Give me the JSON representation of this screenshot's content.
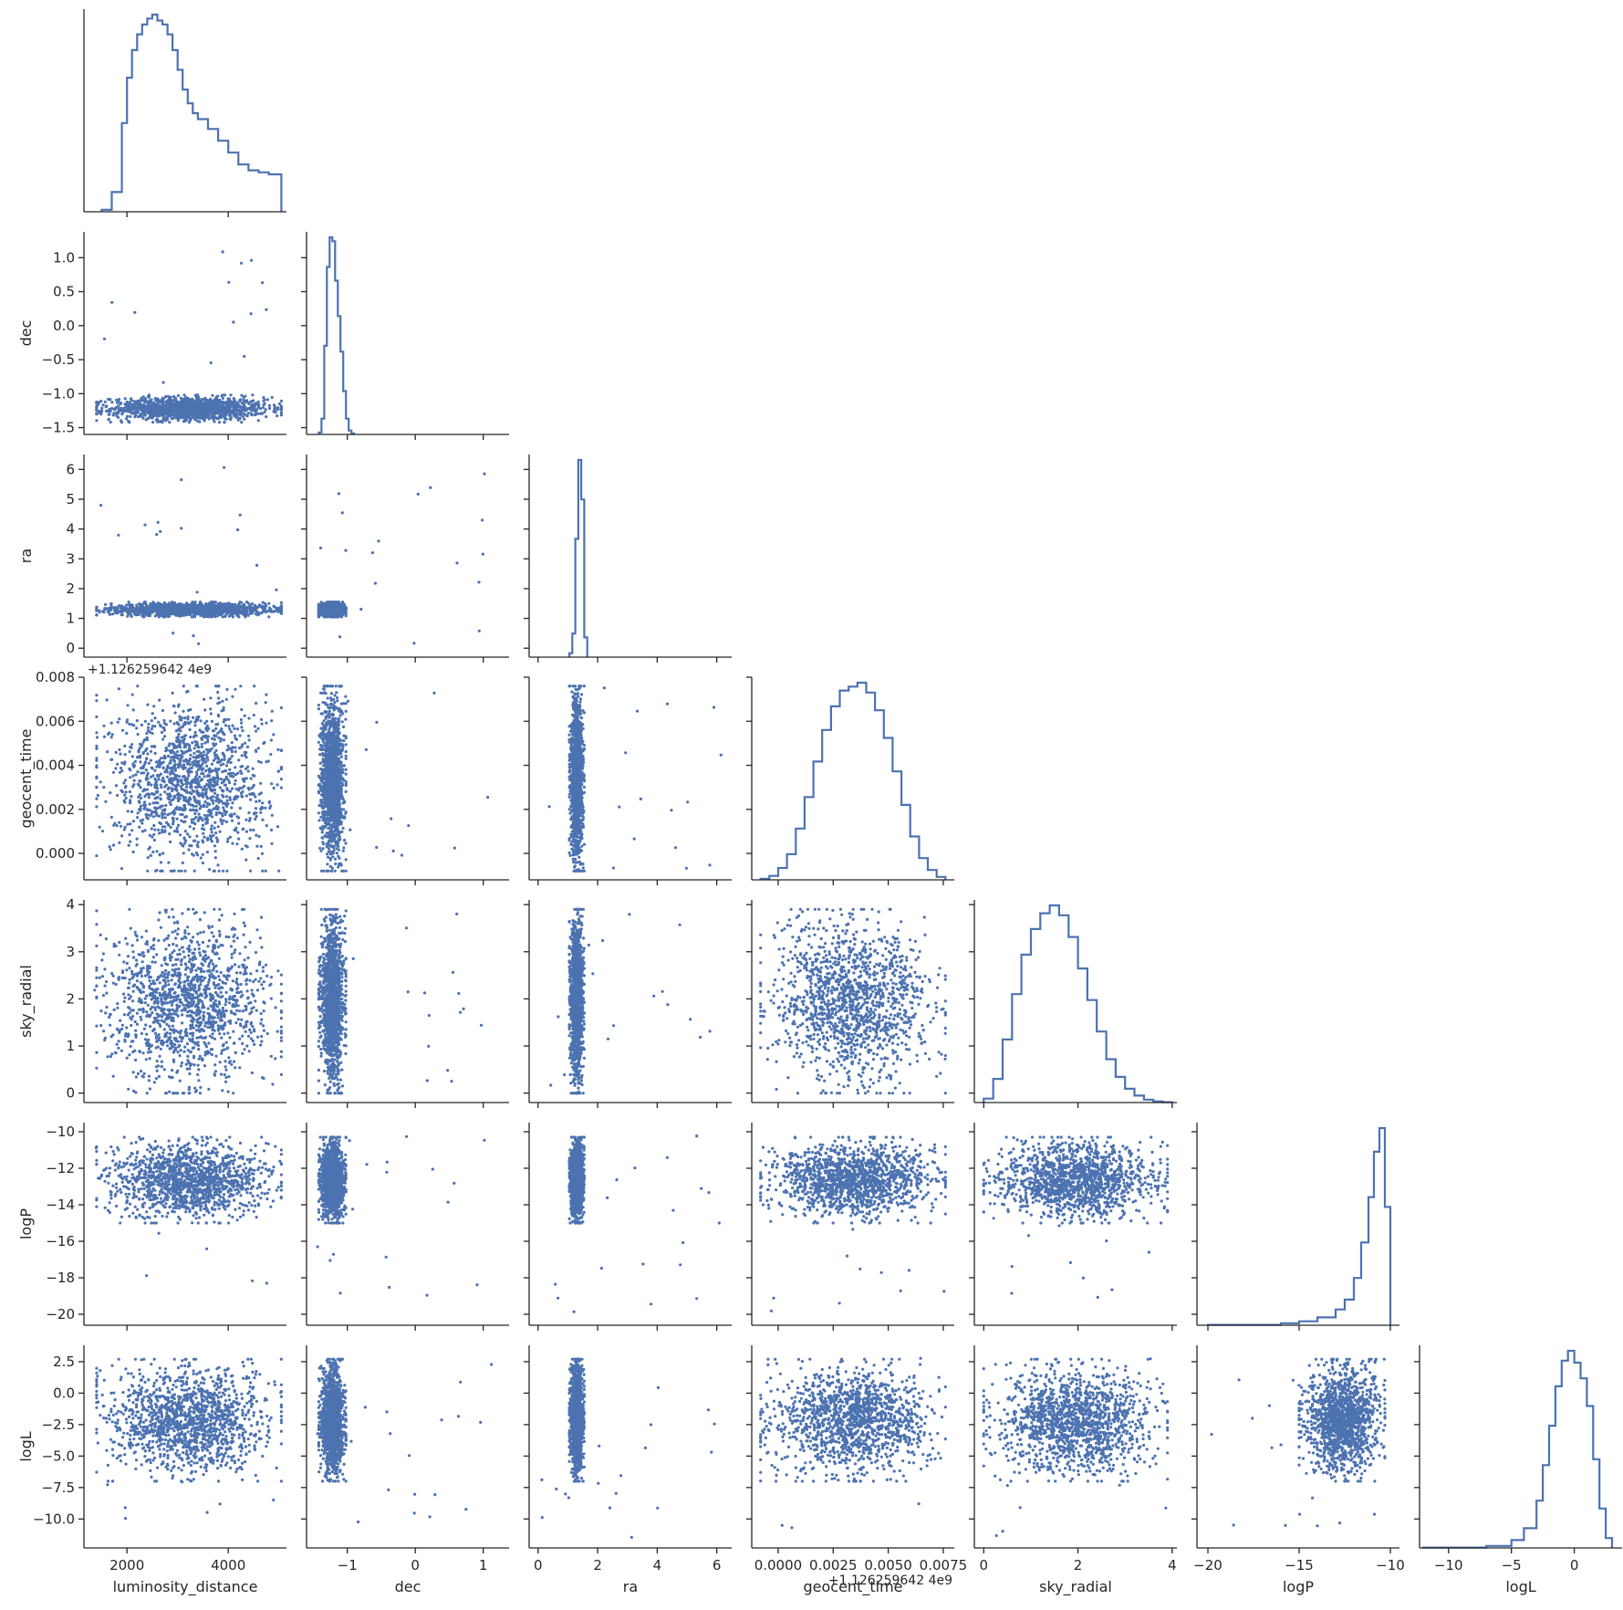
{
  "colors": {
    "marks": "#4c72b0",
    "axis": "#262626",
    "background": "#ffffff"
  },
  "chart_data": {
    "type": "pairplot-corner",
    "variables": [
      "luminosity_distance",
      "dec",
      "ra",
      "geocent_time",
      "sky_radial",
      "logP",
      "logL"
    ],
    "diagonal": "step-histogram",
    "off_diagonal": "scatter",
    "offset_labels": {
      "geocent_time": "+1.126259642 4e9"
    },
    "axes": {
      "luminosity_distance": {
        "lim": [
          1150,
          5150
        ],
        "ticks": [
          2000,
          4000
        ],
        "tick_labels": [
          "2000",
          "4000"
        ]
      },
      "dec": {
        "lim": [
          -1.6,
          1.38
        ],
        "ticks": [
          -1.5,
          -1.0,
          -0.5,
          0.0,
          0.5,
          1.0
        ],
        "tick_labels": [
          "−1.5",
          "−1.0",
          "−0.5",
          "0.0",
          "0.5",
          "1.0"
        ],
        "xticks": [
          -1,
          0,
          1
        ],
        "xtick_labels": [
          "−1",
          "0",
          "1"
        ]
      },
      "ra": {
        "lim": [
          -0.3,
          6.5
        ],
        "ticks": [
          0,
          1,
          2,
          3,
          4,
          5,
          6
        ],
        "tick_labels": [
          "0",
          "1",
          "2",
          "3",
          "4",
          "5",
          "6"
        ],
        "xticks": [
          0,
          2,
          4,
          6
        ],
        "xtick_labels": [
          "0",
          "2",
          "4",
          "6"
        ]
      },
      "geocent_time": {
        "lim": [
          -0.0012,
          0.008
        ],
        "ticks": [
          0.0,
          0.002,
          0.004,
          0.006,
          0.008
        ],
        "tick_labels": [
          "0.000",
          "0.002",
          "0.004",
          "0.006",
          "0.008"
        ],
        "xticks": [
          0.0,
          0.0025,
          0.005,
          0.0075
        ],
        "xtick_labels": [
          "0.0000",
          "0.0025",
          "0.0050",
          "0.0075"
        ]
      },
      "sky_radial": {
        "lim": [
          -0.2,
          4.1
        ],
        "ticks": [
          0,
          1,
          2,
          3,
          4
        ],
        "tick_labels": [
          "0",
          "1",
          "2",
          "3",
          "4"
        ],
        "xticks": [
          0,
          2,
          4
        ],
        "xtick_labels": [
          "0",
          "2",
          "4"
        ]
      },
      "logP": {
        "lim": [
          -20.6,
          -9.5
        ],
        "ticks": [
          -20,
          -18,
          -16,
          -14,
          -12,
          -10
        ],
        "tick_labels": [
          "−20",
          "−18",
          "−16",
          "−14",
          "−12",
          "−10"
        ],
        "xticks": [
          -20,
          -15,
          -10
        ],
        "xtick_labels": [
          "−20",
          "−15",
          "−10"
        ]
      },
      "logL": {
        "lim": [
          -12.3,
          3.8
        ],
        "ticks": [
          -10.0,
          -7.5,
          -5.0,
          -2.5,
          0.0,
          2.5
        ],
        "tick_labels": [
          "−10.0",
          "−7.5",
          "−5.0",
          "−2.5",
          "0.0",
          "2.5"
        ],
        "xticks": [
          -10,
          -5,
          0
        ],
        "xtick_labels": [
          "−10",
          "−5",
          "0"
        ]
      }
    },
    "marginals": {
      "luminosity_distance": {
        "bins": [
          1500,
          1700,
          1900,
          2000,
          2100,
          2200,
          2300,
          2400,
          2500,
          2600,
          2700,
          2800,
          2900,
          3000,
          3100,
          3200,
          3300,
          3400,
          3600,
          3800,
          4000,
          4200,
          4400,
          4600,
          4800,
          4950,
          5050
        ],
        "density": [
          0.01,
          0.1,
          0.45,
          0.68,
          0.82,
          0.9,
          0.95,
          0.98,
          1.0,
          0.97,
          0.95,
          0.9,
          0.82,
          0.72,
          0.62,
          0.55,
          0.5,
          0.47,
          0.42,
          0.36,
          0.3,
          0.24,
          0.21,
          0.2,
          0.19,
          0.19,
          0.0
        ]
      },
      "dec": {
        "bins": [
          -1.42,
          -1.38,
          -1.34,
          -1.3,
          -1.26,
          -1.22,
          -1.18,
          -1.14,
          -1.1,
          -1.06,
          -1.02,
          -0.98,
          -0.94,
          -0.9
        ],
        "density": [
          0.01,
          0.08,
          0.45,
          0.85,
          1.0,
          0.98,
          0.78,
          0.6,
          0.42,
          0.22,
          0.08,
          0.02,
          0.005,
          0.0
        ]
      },
      "ra": {
        "bins": [
          1.05,
          1.15,
          1.25,
          1.35,
          1.45,
          1.55,
          1.65
        ],
        "density": [
          0.02,
          0.12,
          0.6,
          1.0,
          0.8,
          0.1,
          0.0
        ]
      },
      "geocent_time": {
        "bins": [
          -0.0008,
          -0.0004,
          0.0,
          0.0004,
          0.0008,
          0.0012,
          0.0016,
          0.002,
          0.0024,
          0.0028,
          0.0032,
          0.0036,
          0.004,
          0.0044,
          0.0048,
          0.0052,
          0.0056,
          0.006,
          0.0064,
          0.0068,
          0.0072,
          0.0076
        ],
        "density": [
          0.005,
          0.02,
          0.06,
          0.13,
          0.26,
          0.42,
          0.6,
          0.76,
          0.88,
          0.96,
          0.98,
          1.0,
          0.95,
          0.86,
          0.72,
          0.55,
          0.38,
          0.22,
          0.11,
          0.05,
          0.015,
          0.0
        ]
      },
      "sky_radial": {
        "bins": [
          0.0,
          0.2,
          0.4,
          0.6,
          0.8,
          1.0,
          1.2,
          1.4,
          1.6,
          1.8,
          2.0,
          2.2,
          2.4,
          2.6,
          2.8,
          3.0,
          3.2,
          3.4,
          3.6,
          3.8,
          4.0
        ],
        "density": [
          0.02,
          0.12,
          0.32,
          0.55,
          0.75,
          0.88,
          0.96,
          1.0,
          0.95,
          0.84,
          0.68,
          0.52,
          0.36,
          0.22,
          0.13,
          0.07,
          0.035,
          0.015,
          0.006,
          0.002,
          0.0
        ]
      },
      "logP": {
        "bins": [
          -20.0,
          -16.0,
          -15.0,
          -14.0,
          -13.0,
          -12.5,
          -12.0,
          -11.6,
          -11.2,
          -10.9,
          -10.6,
          -10.3,
          -10.0
        ],
        "density": [
          0.002,
          0.01,
          0.02,
          0.04,
          0.08,
          0.13,
          0.24,
          0.42,
          0.65,
          0.88,
          1.0,
          0.6,
          0.0
        ]
      },
      "logL": {
        "bins": [
          -12.0,
          -7.0,
          -5.0,
          -4.0,
          -3.0,
          -2.5,
          -2.0,
          -1.5,
          -1.0,
          -0.5,
          0.0,
          0.5,
          1.0,
          1.5,
          2.0,
          2.5,
          3.0
        ],
        "density": [
          0.002,
          0.01,
          0.04,
          0.1,
          0.24,
          0.42,
          0.62,
          0.82,
          0.95,
          1.0,
          0.94,
          0.86,
          0.72,
          0.45,
          0.2,
          0.05,
          0.0
        ]
      }
    },
    "bulk": {
      "luminosity_distance": [
        1400,
        5050
      ],
      "dec": [
        -1.42,
        -1.02
      ],
      "ra": [
        1.05,
        1.55
      ],
      "geocent_time": [
        -0.0008,
        0.0076
      ],
      "sky_radial": [
        0.0,
        3.9
      ],
      "logP": [
        -15.0,
        -10.3
      ],
      "logL": [
        -7.0,
        2.7
      ]
    },
    "scatter_density": "approx-estimated",
    "xlabels": [
      "luminosity_distance",
      "dec",
      "ra",
      "geocent_time",
      "sky_radial",
      "logP",
      "logL"
    ],
    "ylabels": [
      "dec",
      "ra",
      "geocent_time",
      "sky_radial",
      "logP",
      "logL"
    ],
    "grid": false,
    "legend": "none"
  }
}
